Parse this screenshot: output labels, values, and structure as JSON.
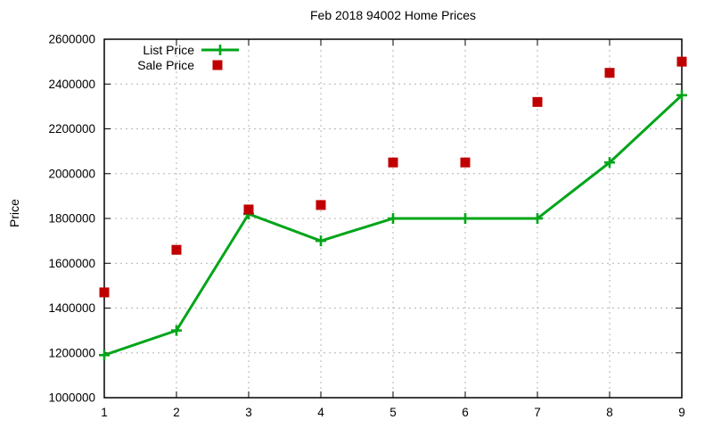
{
  "chart_data": {
    "type": "line",
    "title": "Feb 2018 94002 Home Prices",
    "xlabel": "",
    "ylabel": "Price",
    "x": [
      1,
      2,
      3,
      4,
      5,
      6,
      7,
      8,
      9
    ],
    "x_ticks": [
      1,
      2,
      3,
      4,
      5,
      6,
      7,
      8,
      9
    ],
    "y_ticks": [
      1000000,
      1200000,
      1400000,
      1600000,
      1800000,
      2000000,
      2200000,
      2400000,
      2600000
    ],
    "xlim": [
      1,
      9
    ],
    "ylim": [
      1000000,
      2600000
    ],
    "grid": true,
    "legend_position": "top-left-inside",
    "grid_color": "#b4b4b4",
    "text_color": "#000000",
    "background_color": "#ffffff",
    "series": [
      {
        "name": "List Price",
        "marker": "plus",
        "draw_line": true,
        "color": "#00a519",
        "values": [
          1190000,
          1300000,
          1820000,
          1700000,
          1800000,
          1800000,
          1800000,
          2050000,
          2350000
        ]
      },
      {
        "name": "Sale Price",
        "marker": "square",
        "draw_line": false,
        "color": "#c00000",
        "values": [
          1470000,
          1660000,
          1840000,
          1860000,
          2050000,
          2050000,
          2320000,
          2450000,
          2500000
        ]
      }
    ]
  }
}
